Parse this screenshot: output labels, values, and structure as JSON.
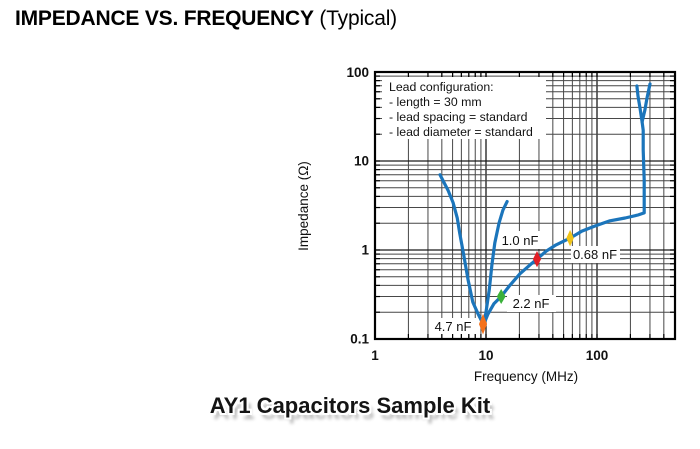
{
  "title": {
    "main": "IMPEDANCE VS. FREQUENCY",
    "suffix": "(Typical)"
  },
  "caption": "AY1 Capacitors Sample Kit",
  "chart_data": {
    "type": "line",
    "title": "IMPEDANCE VS. FREQUENCY (Typical)",
    "xlabel": "Frequency (MHz)",
    "ylabel": "Impedance (Ω)",
    "x_scale": "log",
    "y_scale": "log",
    "xlim": [
      1,
      500
    ],
    "ylim": [
      0.1,
      100
    ],
    "grid": true,
    "curve_color": "#1B75BB",
    "x_ticks": [
      {
        "v": 1,
        "label": "1"
      },
      {
        "v": 10,
        "label": "10"
      },
      {
        "v": 100,
        "label": "100"
      }
    ],
    "y_ticks": [
      {
        "v": 100,
        "label": "100"
      },
      {
        "v": 10,
        "label": "10"
      },
      {
        "v": 1,
        "label": "1"
      },
      {
        "v": 0.1,
        "label": "0.1"
      }
    ],
    "legend_box": {
      "lines": [
        "Lead configuration:",
        "- length = 30 mm",
        "- lead spacing = standard",
        "- lead diameter = standard"
      ]
    },
    "series": [
      {
        "name": "series-resonance-v",
        "color": "#1B75BB",
        "points": [
          [
            3.85,
            7.0
          ],
          [
            4.55,
            4.7
          ],
          [
            5.05,
            3.4
          ],
          [
            5.5,
            2.3
          ],
          [
            5.8,
            1.55
          ],
          [
            6.3,
            0.88
          ],
          [
            6.9,
            0.46
          ],
          [
            7.6,
            0.26
          ],
          [
            8.5,
            0.19
          ],
          [
            9.25,
            0.155
          ],
          [
            9.6,
            0.15
          ],
          [
            10.0,
            0.2
          ],
          [
            10.7,
            0.36
          ],
          [
            11.3,
            0.68
          ],
          [
            12.0,
            1.2
          ],
          [
            13.1,
            2.0
          ],
          [
            14.2,
            2.8
          ],
          [
            15.5,
            3.5
          ]
        ]
      },
      {
        "name": "composite-envelope-and-spike",
        "color": "#1B75BB",
        "points": [
          [
            9.6,
            0.148
          ],
          [
            10.4,
            0.19
          ],
          [
            11.8,
            0.25
          ],
          [
            13.7,
            0.3
          ],
          [
            16.4,
            0.4
          ],
          [
            20.2,
            0.54
          ],
          [
            24.9,
            0.68
          ],
          [
            28.8,
            0.79
          ],
          [
            34.8,
            0.97
          ],
          [
            42.7,
            1.14
          ],
          [
            57.2,
            1.36
          ],
          [
            73.1,
            1.63
          ],
          [
            95.9,
            1.86
          ],
          [
            131,
            2.13
          ],
          [
            179,
            2.29
          ],
          [
            234,
            2.47
          ],
          [
            266,
            2.61
          ],
          [
            266,
            3.6
          ],
          [
            266,
            6.1
          ],
          [
            261,
            13.3
          ],
          [
            261,
            22.2
          ],
          [
            255,
            27.5
          ],
          [
            244,
            39.4
          ],
          [
            234,
            53.8
          ],
          [
            229,
            69.7
          ]
        ]
      },
      {
        "name": "spike-right-branch",
        "color": "#1B75BB",
        "points": [
          [
            300,
            73.4
          ],
          [
            282,
            51.1
          ],
          [
            270,
            37.4
          ],
          [
            255,
            27.5
          ]
        ]
      }
    ],
    "annotations": [
      {
        "label": "4.7 nF",
        "f": 9.4,
        "z": 0.147,
        "color": "#F4711B",
        "marker_rx": 3.5,
        "marker_ry": 9
      },
      {
        "label": "2.2 nF",
        "f": 13.7,
        "z": 0.3,
        "color": "#3BB13B",
        "marker_rx": 3.8,
        "marker_ry": 6.5
      },
      {
        "label": "1.0 nF",
        "f": 28.8,
        "z": 0.79,
        "color": "#E21F26",
        "marker_rx": 3.5,
        "marker_ry": 7
      },
      {
        "label": "0.68 nF",
        "f": 57.2,
        "z": 1.36,
        "color": "#F0C419",
        "marker_rx": 3.2,
        "marker_ry": 7
      }
    ]
  }
}
